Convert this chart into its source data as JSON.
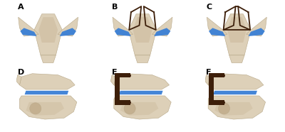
{
  "background_color": "#ffffff",
  "fig_width": 4.0,
  "fig_height": 1.86,
  "panels": [
    {
      "label": "A",
      "col": 0,
      "row": 0
    },
    {
      "label": "B",
      "col": 1,
      "row": 0
    },
    {
      "label": "C",
      "col": 2,
      "row": 0
    },
    {
      "label": "D",
      "col": 0,
      "row": 1
    },
    {
      "label": "E",
      "col": 1,
      "row": 1
    },
    {
      "label": "F",
      "col": 2,
      "row": 1
    }
  ],
  "bone_color": "#ddd0b8",
  "bone_edge": "#b8a888",
  "bone_shadow": "#c4b090",
  "blue_color": "#3a7fd5",
  "bracket_color": "#3d1f0a",
  "label_fontsize": 8,
  "label_color": "#000000",
  "label_weight": "bold"
}
